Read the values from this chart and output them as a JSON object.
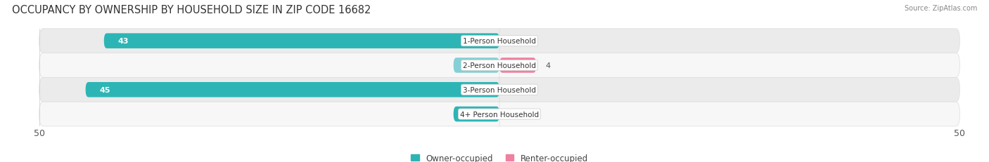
{
  "title": "OCCUPANCY BY OWNERSHIP BY HOUSEHOLD SIZE IN ZIP CODE 16682",
  "source": "Source: ZipAtlas.com",
  "categories": [
    "1-Person Household",
    "2-Person Household",
    "3-Person Household",
    "4+ Person Household"
  ],
  "owner_values": [
    43,
    0,
    45,
    5
  ],
  "renter_values": [
    0,
    4,
    0,
    0
  ],
  "owner_color": "#2db5b5",
  "owner_color_light": "#85d0d5",
  "renter_color": "#f080a0",
  "renter_color_light": "#f8b8c8",
  "owner_label": "Owner-occupied",
  "renter_label": "Renter-occupied",
  "xlim": [
    -50,
    50
  ],
  "xticks": [
    -50,
    50
  ],
  "bar_height": 0.62,
  "row_bg_even": "#ebebeb",
  "row_bg_odd": "#f7f7f7",
  "title_fontsize": 10.5,
  "tick_fontsize": 9,
  "legend_fontsize": 8.5,
  "value_fontsize": 8,
  "category_fontsize": 7.5
}
